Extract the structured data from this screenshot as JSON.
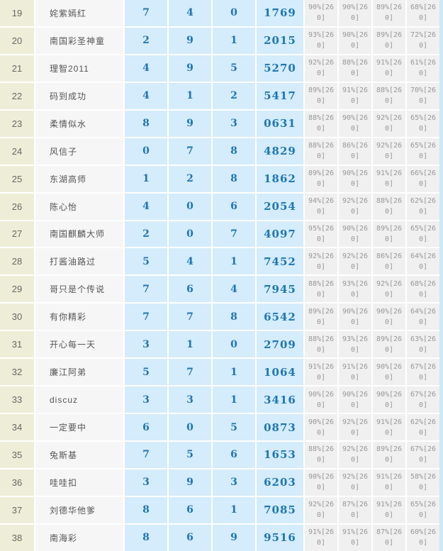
{
  "colors": {
    "rank_bg": "#eeeed8",
    "name_bg": "#f6f6f6",
    "blue_cell_bg": "#d4ecfb",
    "percent_bg": "#f0f0f0",
    "blue_text": "#1e76b4",
    "gray_text": "#979797",
    "edge_strip": "#cde8f7"
  },
  "table": {
    "rows": [
      {
        "rank": "19",
        "name": "姹紫嫣红",
        "n1": "7",
        "n2": "4",
        "n3": "0",
        "num": "1769",
        "p1": "90%[260]",
        "p2": "90%[260]",
        "p3": "89%[260]",
        "p4": "68%[260]"
      },
      {
        "rank": "20",
        "name": "南国彩圣神童",
        "n1": "2",
        "n2": "9",
        "n3": "1",
        "num": "2015",
        "p1": "93%[260]",
        "p2": "90%[260]",
        "p3": "89%[260]",
        "p4": "72%[260]"
      },
      {
        "rank": "21",
        "name": "理智2011",
        "n1": "4",
        "n2": "9",
        "n3": "5",
        "num": "5270",
        "p1": "92%[260]",
        "p2": "88%[260]",
        "p3": "91%[260]",
        "p4": "61%[260]"
      },
      {
        "rank": "22",
        "name": "码到成功",
        "n1": "4",
        "n2": "1",
        "n3": "2",
        "num": "5417",
        "p1": "89%[260]",
        "p2": "91%[260]",
        "p3": "88%[260]",
        "p4": "70%[260]"
      },
      {
        "rank": "23",
        "name": "柔情似水",
        "n1": "8",
        "n2": "9",
        "n3": "3",
        "num": "0631",
        "p1": "88%[260]",
        "p2": "90%[260]",
        "p3": "92%[260]",
        "p4": "65%[260]"
      },
      {
        "rank": "24",
        "name": "风信子",
        "n1": "0",
        "n2": "7",
        "n3": "8",
        "num": "4829",
        "p1": "88%[260]",
        "p2": "86%[260]",
        "p3": "92%[260]",
        "p4": "65%[260]"
      },
      {
        "rank": "25",
        "name": "东湖高师",
        "n1": "1",
        "n2": "2",
        "n3": "8",
        "num": "1862",
        "p1": "89%[260]",
        "p2": "90%[260]",
        "p3": "91%[260]",
        "p4": "66%[260]"
      },
      {
        "rank": "26",
        "name": "陈心怡",
        "n1": "4",
        "n2": "0",
        "n3": "6",
        "num": "2054",
        "p1": "94%[260]",
        "p2": "92%[260]",
        "p3": "88%[260]",
        "p4": "62%[260]"
      },
      {
        "rank": "27",
        "name": "南国麒麟大师",
        "n1": "2",
        "n2": "0",
        "n3": "7",
        "num": "4097",
        "p1": "95%[260]",
        "p2": "90%[260]",
        "p3": "89%[260]",
        "p4": "65%[260]"
      },
      {
        "rank": "28",
        "name": "打酱油路过",
        "n1": "5",
        "n2": "4",
        "n3": "1",
        "num": "7452",
        "p1": "92%[260]",
        "p2": "92%[260]",
        "p3": "86%[260]",
        "p4": "64%[260]"
      },
      {
        "rank": "29",
        "name": "哥只是个传说",
        "n1": "7",
        "n2": "6",
        "n3": "4",
        "num": "7945",
        "p1": "88%[260]",
        "p2": "93%[260]",
        "p3": "92%[260]",
        "p4": "68%[260]"
      },
      {
        "rank": "30",
        "name": "有你精彩",
        "n1": "7",
        "n2": "7",
        "n3": "8",
        "num": "6542",
        "p1": "89%[260]",
        "p2": "90%[260]",
        "p3": "90%[260]",
        "p4": "64%[260]"
      },
      {
        "rank": "31",
        "name": "开心每一天",
        "n1": "3",
        "n2": "1",
        "n3": "0",
        "num": "2709",
        "p1": "88%[260]",
        "p2": "93%[260]",
        "p3": "89%[260]",
        "p4": "63%[260]"
      },
      {
        "rank": "32",
        "name": "廉江阿弟",
        "n1": "5",
        "n2": "7",
        "n3": "1",
        "num": "1064",
        "p1": "91%[260]",
        "p2": "91%[260]",
        "p3": "90%[260]",
        "p4": "67%[260]"
      },
      {
        "rank": "33",
        "name": "discuz",
        "n1": "3",
        "n2": "3",
        "n3": "1",
        "num": "3416",
        "p1": "90%[260]",
        "p2": "90%[260]",
        "p3": "90%[260]",
        "p4": "67%[260]"
      },
      {
        "rank": "34",
        "name": "一定要中",
        "n1": "6",
        "n2": "0",
        "n3": "5",
        "num": "0873",
        "p1": "90%[260]",
        "p2": "92%[260]",
        "p3": "91%[260]",
        "p4": "62%[260]"
      },
      {
        "rank": "35",
        "name": "兔斯基",
        "n1": "7",
        "n2": "5",
        "n3": "6",
        "num": "1653",
        "p1": "88%[260]",
        "p2": "92%[260]",
        "p3": "89%[260]",
        "p4": "67%[260]"
      },
      {
        "rank": "36",
        "name": "哇哇扣",
        "n1": "3",
        "n2": "9",
        "n3": "3",
        "num": "6203",
        "p1": "90%[260]",
        "p2": "92%[260]",
        "p3": "91%[260]",
        "p4": "58%[260]"
      },
      {
        "rank": "37",
        "name": "刘德华他爹",
        "n1": "8",
        "n2": "6",
        "n3": "1",
        "num": "7085",
        "p1": "92%[260]",
        "p2": "87%[260]",
        "p3": "91%[260]",
        "p4": "65%[260]"
      },
      {
        "rank": "38",
        "name": "南海彩",
        "n1": "8",
        "n2": "6",
        "n3": "9",
        "num": "9516",
        "p1": "91%[260]",
        "p2": "91%[260]",
        "p3": "87%[260]",
        "p4": "60%[260]"
      }
    ]
  }
}
